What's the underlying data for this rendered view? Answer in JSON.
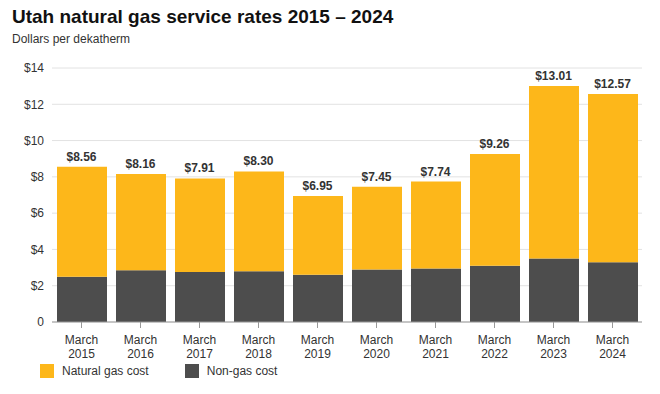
{
  "chart_data": {
    "type": "bar",
    "title": "Utah natural gas service rates 2015 – 2024",
    "subtitle": "Dollars per dekatherm",
    "categories": [
      "March 2015",
      "March 2016",
      "March 2017",
      "March 2018",
      "March 2019",
      "March 2020",
      "March 2021",
      "March 2022",
      "March 2023",
      "March 2024"
    ],
    "series": [
      {
        "name": "Non-gas cost",
        "color": "#4d4d4d",
        "values": [
          2.5,
          2.85,
          2.75,
          2.8,
          2.6,
          2.9,
          2.95,
          3.1,
          3.5,
          3.3
        ]
      },
      {
        "name": "Natural gas cost",
        "color": "#fdb71a",
        "values": [
          6.06,
          5.31,
          5.16,
          5.5,
          4.35,
          4.55,
          4.79,
          6.16,
          9.51,
          9.27
        ]
      }
    ],
    "totals": [
      8.56,
      8.16,
      7.91,
      8.3,
      6.95,
      7.45,
      7.74,
      9.26,
      13.01,
      12.57
    ],
    "total_labels": [
      "$8.56",
      "$8.16",
      "$7.91",
      "$8.30",
      "$6.95",
      "$7.45",
      "$7.74",
      "$9.26",
      "$13.01",
      "$12.57"
    ],
    "ylim": [
      0,
      14
    ],
    "yticks": [
      0,
      {
        "value": 2,
        "label": "$2"
      },
      {
        "value": 4,
        "label": "$4"
      },
      {
        "value": 6,
        "label": "$6"
      },
      {
        "value": 8,
        "label": "$8"
      },
      {
        "value": 10,
        "label": "$10"
      },
      {
        "value": 12,
        "label": "$12"
      },
      {
        "value": 14,
        "label": "$14"
      }
    ],
    "stacked": true,
    "grid": true,
    "data_labels": true,
    "legend": "bottom-left"
  }
}
